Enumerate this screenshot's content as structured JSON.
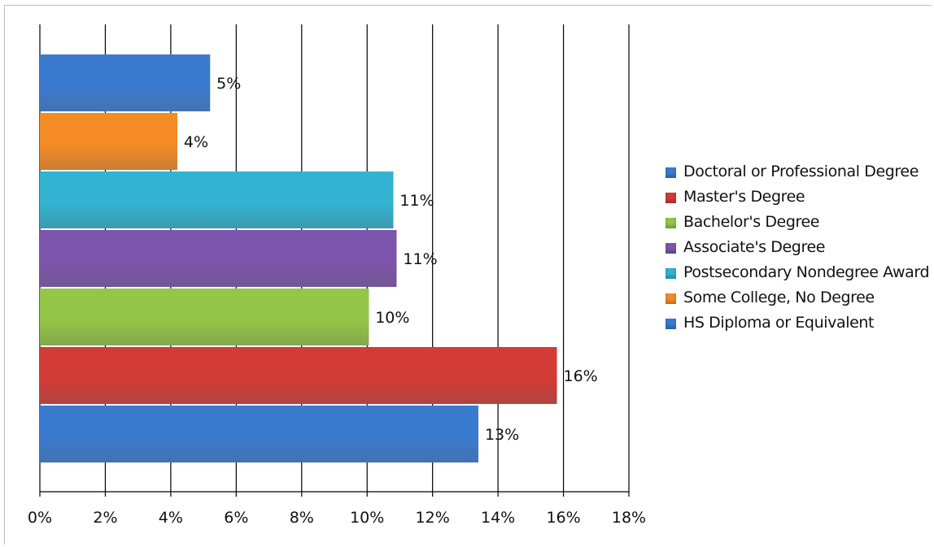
{
  "chart_data": {
    "type": "bar",
    "orientation": "horizontal",
    "title": "",
    "xlabel": "",
    "ylabel": "",
    "xlim": [
      0,
      18
    ],
    "x_ticks": [
      "0%",
      "2%",
      "4%",
      "6%",
      "8%",
      "10%",
      "12%",
      "14%",
      "16%",
      "18%"
    ],
    "grid": "vertical",
    "legend_position": "right",
    "bars": [
      {
        "category": "HS Diploma or Equivalent",
        "value": 13.4,
        "label": "13%",
        "color": "#3a7bd0"
      },
      {
        "category": "Master's Degree",
        "value": 15.8,
        "label": "16%",
        "color": "#d23b36"
      },
      {
        "category": "Bachelor's Degree",
        "value": 10.05,
        "label": "10%",
        "color": "#94c647"
      },
      {
        "category": "Associate's Degree",
        "value": 10.9,
        "label": "11%",
        "color": "#7d55ac"
      },
      {
        "category": "Postsecondary Nondegree Award",
        "value": 10.8,
        "label": "11%",
        "color": "#32b3d1"
      },
      {
        "category": "Some College, No Degree",
        "value": 4.2,
        "label": "4%",
        "color": "#f58b23"
      },
      {
        "category": "Doctoral or Professional Degree",
        "value": 5.2,
        "label": "5%",
        "color": "#3a7bd0"
      }
    ],
    "legend": [
      {
        "label": "Doctoral or Professional Degree",
        "color": "#3a7bd0"
      },
      {
        "label": "Master's Degree",
        "color": "#d23b36"
      },
      {
        "label": "Bachelor's Degree",
        "color": "#94c647"
      },
      {
        "label": "Associate's Degree",
        "color": "#7d55ac"
      },
      {
        "label": "Postsecondary Nondegree Award",
        "color": "#32b3d1"
      },
      {
        "label": "Some College, No Degree",
        "color": "#f58b23"
      },
      {
        "label": "HS Diploma or Equivalent",
        "color": "#3a7bd0"
      }
    ]
  }
}
